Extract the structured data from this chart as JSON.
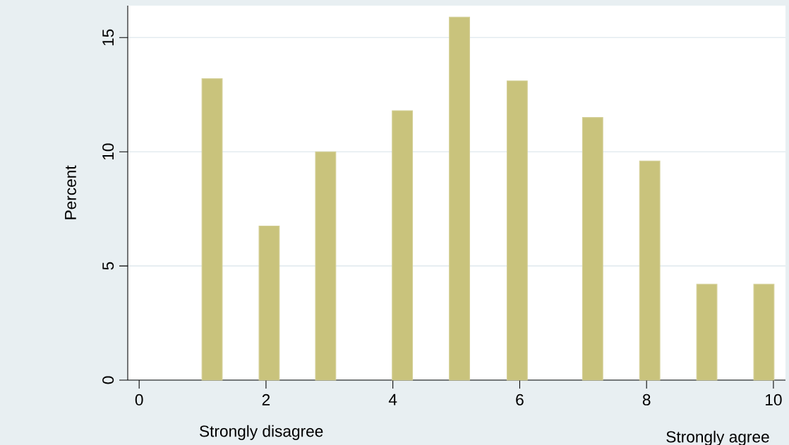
{
  "chart_data": {
    "type": "bar",
    "ylabel": "Percent",
    "x": [
      1.15,
      2.05,
      2.94,
      4.15,
      5.05,
      5.96,
      7.15,
      8.05,
      8.95,
      9.85
    ],
    "values": [
      13.2,
      6.75,
      10.0,
      11.8,
      15.9,
      13.1,
      11.5,
      9.6,
      4.2,
      4.2
    ],
    "color": "#c9c37c",
    "xlim": [
      -0.18,
      10.19
    ],
    "ylim": [
      0,
      16.4
    ],
    "xticks": [
      0,
      2,
      4,
      6,
      8,
      10
    ],
    "yticks": [
      0,
      5,
      10,
      15
    ],
    "grid": "y",
    "annotations": [
      "Strongly disagree",
      "Strongly agree"
    ]
  }
}
